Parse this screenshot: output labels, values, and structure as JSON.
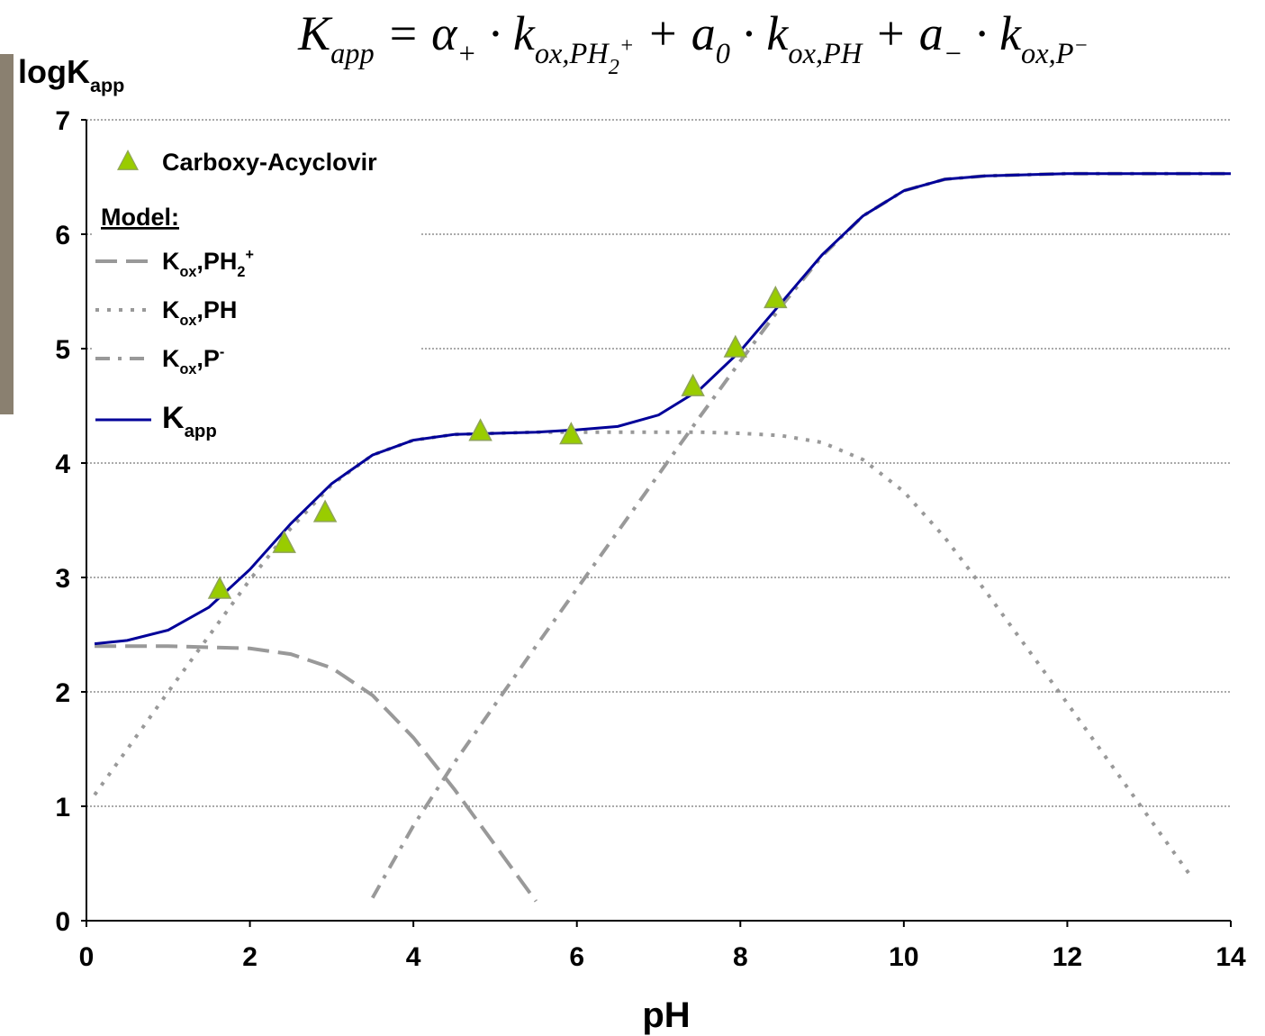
{
  "chart_data": {
    "type": "line",
    "title": [
      {
        "text": "K",
        "style": "base"
      },
      {
        "text": "app",
        "style": "sub"
      },
      {
        "text": " = ",
        "style": "base"
      },
      {
        "text": "α",
        "style": "base"
      },
      {
        "text": "+",
        "style": "sub"
      },
      {
        "text": " · k",
        "style": "base"
      },
      {
        "text": "ox,PH",
        "style": "sub"
      },
      {
        "text": "2",
        "style": "subsub"
      },
      {
        "text": "+",
        "style": "subsup"
      },
      {
        "text": " + a",
        "style": "base"
      },
      {
        "text": "0",
        "style": "sub"
      },
      {
        "text": " · k",
        "style": "base"
      },
      {
        "text": "ox,PH",
        "style": "sub"
      },
      {
        "text": " + a",
        "style": "base"
      },
      {
        "text": "−",
        "style": "sub"
      },
      {
        "text": " · k",
        "style": "base"
      },
      {
        "text": "ox,P",
        "style": "sub"
      },
      {
        "text": "−",
        "style": "subsup"
      }
    ],
    "ylabel": [
      {
        "text": "logK",
        "style": "base"
      },
      {
        "text": "app",
        "style": "sub"
      }
    ],
    "xlabel": "pH",
    "xlim": [
      0,
      14
    ],
    "ylim": [
      0,
      7
    ],
    "xticks": [
      0,
      2,
      4,
      6,
      8,
      10,
      12,
      14
    ],
    "yticks": [
      0,
      1,
      2,
      3,
      4,
      5,
      6,
      7
    ],
    "grid": true,
    "legend": "upper left",
    "legend_heading": "Model:",
    "x": [
      0.1,
      0.5,
      1,
      1.5,
      2,
      2.5,
      3,
      3.5,
      4,
      4.5,
      5,
      5.5,
      6,
      6.5,
      7,
      7.5,
      8,
      8.5,
      9,
      9.5,
      10,
      10.5,
      11,
      11.5,
      12,
      12.5,
      13,
      13.5,
      14
    ],
    "series": [
      {
        "name": [
          {
            "text": "Carboxy-Acyclovir",
            "style": "base"
          }
        ],
        "type": "scatter",
        "color": "#99cc00",
        "x": [
          1.63,
          2.42,
          2.92,
          4.82,
          5.93,
          7.42,
          7.94,
          8.43
        ],
        "values": [
          2.89,
          3.29,
          3.56,
          4.27,
          4.24,
          4.66,
          5.0,
          5.43
        ]
      },
      {
        "name": [
          {
            "text": "K",
            "style": "base"
          },
          {
            "text": "ox",
            "style": "sub"
          },
          {
            "text": ",PH",
            "style": "base"
          },
          {
            "text": "2",
            "style": "sub"
          },
          {
            "text": "+",
            "style": "sup"
          }
        ],
        "type": "line",
        "color": "#999999",
        "dash": "long-dash",
        "values": [
          2.4,
          2.4,
          2.4,
          2.39,
          2.38,
          2.33,
          2.21,
          1.97,
          1.6,
          1.15,
          0.66,
          0.17,
          null,
          null,
          null,
          null,
          null,
          null,
          null,
          null,
          null,
          null,
          null,
          null,
          null,
          null,
          null,
          null,
          null
        ]
      },
      {
        "name": [
          {
            "text": "K",
            "style": "base"
          },
          {
            "text": "ox",
            "style": "sub"
          },
          {
            "text": ",PH",
            "style": "base"
          }
        ],
        "type": "line",
        "color": "#999999",
        "dash": "dot",
        "values": [
          1.1,
          1.5,
          2.0,
          2.49,
          2.98,
          3.43,
          3.81,
          4.07,
          4.2,
          4.25,
          4.26,
          4.27,
          4.27,
          4.27,
          4.27,
          4.27,
          4.26,
          4.24,
          4.18,
          4.03,
          3.75,
          3.35,
          2.88,
          2.39,
          1.9,
          1.4,
          0.9,
          0.4,
          null
        ]
      },
      {
        "name": [
          {
            "text": "K",
            "style": "base"
          },
          {
            "text": "ox",
            "style": "sub"
          },
          {
            "text": ",P",
            "style": "base"
          },
          {
            "text": "-",
            "style": "sup"
          }
        ],
        "type": "line",
        "color": "#999999",
        "dash": "dash-dot",
        "values": [
          null,
          null,
          null,
          null,
          null,
          null,
          null,
          0.2,
          0.83,
          1.38,
          1.89,
          2.4,
          2.9,
          3.4,
          3.9,
          4.4,
          4.89,
          5.37,
          5.81,
          6.16,
          6.38,
          6.48,
          6.51,
          6.52,
          6.53,
          6.53,
          6.53,
          6.53,
          6.53
        ]
      },
      {
        "name": [
          {
            "text": "K",
            "style": "base"
          },
          {
            "text": "app",
            "style": "sub"
          }
        ],
        "type": "line",
        "color": "#000099",
        "dash": "solid",
        "values": [
          2.42,
          2.45,
          2.54,
          2.74,
          3.07,
          3.47,
          3.82,
          4.07,
          4.2,
          4.25,
          4.26,
          4.27,
          4.29,
          4.32,
          4.42,
          4.64,
          4.98,
          5.4,
          5.82,
          6.16,
          6.38,
          6.48,
          6.51,
          6.52,
          6.53,
          6.53,
          6.53,
          6.53,
          6.53
        ]
      }
    ]
  }
}
